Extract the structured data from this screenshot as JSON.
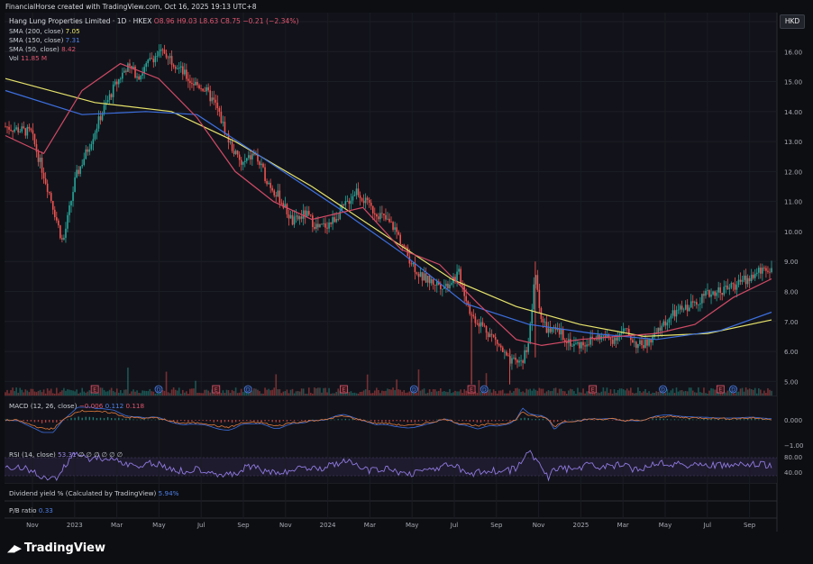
{
  "header": {
    "creator_line": "FinancialHorse created with TradingView.com, Oct 16, 2025 19:13 UTC+8",
    "symbol_line": "Hang Lung Properties Limited · 1D · HKEX",
    "open": "O8.96",
    "high": "H9.03",
    "low": "L8.63",
    "close": "C8.75",
    "change": "−0.21 (−2.34%)",
    "currency_badge": "HKD"
  },
  "indicators": {
    "sma200_label": "SMA (200, close)",
    "sma200_value": "7.05",
    "sma150_label": "SMA (150, close)",
    "sma150_value": "7.31",
    "sma50_label": "SMA (50, close)",
    "sma50_value": "8.42",
    "vol_label": "Vol",
    "vol_value": "11.85 M",
    "macd_label": "MACD (12, 26, close)",
    "macd_hist": "−0.006",
    "macd_line": "0.112",
    "macd_signal": "0.118",
    "rsi_label": "RSI (14, close)",
    "rsi_value": "53.31",
    "rsi_empty": "∅ ∅ ∅ ∅ ∅ ∅",
    "div_label": "Dividend yield % (Calculated by TradingView)",
    "div_value": "5.94%",
    "pb_label": "P/B ratio",
    "pb_value": "0.33"
  },
  "colors": {
    "up": "#26a69a",
    "down": "#ef5350",
    "sma200": "#e7e36b",
    "sma150": "#3d6fe0",
    "sma50": "#d24a66",
    "rsi": "#8f7ae0",
    "macd_line": "#3d6fe0",
    "macd_signal": "#e07a3a"
  },
  "footer": {
    "brand": "TradingView"
  },
  "chart_data": {
    "type": "candlestick",
    "title": "Hang Lung Properties Limited · 1D · HKEX",
    "price_axis": {
      "ylim": [
        4.5,
        17.3
      ],
      "ticks": [
        "17.00",
        "16.00",
        "15.00",
        "14.00",
        "13.00",
        "12.00",
        "11.00",
        "10.00",
        "9.00",
        "8.00",
        "7.00",
        "6.00",
        "5.00"
      ]
    },
    "x_ticks": [
      "Nov",
      "2023",
      "Mar",
      "May",
      "Jul",
      "Sep",
      "Nov",
      "2024",
      "Mar",
      "May",
      "Jul",
      "Sep",
      "Nov",
      "2025",
      "Mar",
      "May",
      "Jul",
      "Sep"
    ],
    "price_path": [
      [
        0,
        13.5
      ],
      [
        4,
        13.3
      ],
      [
        7,
        11.2
      ],
      [
        9,
        9.6
      ],
      [
        11,
        11.8
      ],
      [
        13,
        12.8
      ],
      [
        15,
        13.9
      ],
      [
        17,
        14.8
      ],
      [
        19,
        15.5
      ],
      [
        21,
        15.2
      ],
      [
        23,
        15.8
      ],
      [
        25,
        16.0
      ],
      [
        27,
        15.5
      ],
      [
        29,
        15.0
      ],
      [
        31,
        14.8
      ],
      [
        33,
        14.2
      ],
      [
        35,
        13.0
      ],
      [
        37,
        12.2
      ],
      [
        39,
        12.6
      ],
      [
        41,
        11.7
      ],
      [
        43,
        11.1
      ],
      [
        45,
        10.3
      ],
      [
        47,
        10.6
      ],
      [
        49,
        10.1
      ],
      [
        51,
        10.3
      ],
      [
        53,
        10.8
      ],
      [
        55,
        11.4
      ],
      [
        57,
        10.8
      ],
      [
        59,
        10.5
      ],
      [
        61,
        10.1
      ],
      [
        63,
        9.2
      ],
      [
        65,
        8.5
      ],
      [
        67,
        8.3
      ],
      [
        69,
        8.2
      ],
      [
        71,
        8.6
      ],
      [
        73,
        7.2
      ],
      [
        75,
        6.8
      ],
      [
        77,
        6.3
      ],
      [
        79,
        5.6
      ],
      [
        81,
        5.7
      ],
      [
        82,
        6.4
      ],
      [
        83,
        8.6
      ],
      [
        84,
        7.0
      ],
      [
        85,
        6.7
      ],
      [
        87,
        6.6
      ],
      [
        89,
        6.2
      ],
      [
        91,
        6.3
      ],
      [
        93,
        6.5
      ],
      [
        95,
        6.4
      ],
      [
        97,
        6.7
      ],
      [
        99,
        6.2
      ],
      [
        101,
        6.3
      ],
      [
        103,
        6.9
      ],
      [
        105,
        7.3
      ],
      [
        107,
        7.5
      ],
      [
        109,
        7.8
      ],
      [
        111,
        8.0
      ],
      [
        113,
        8.1
      ],
      [
        115,
        8.3
      ],
      [
        117,
        8.5
      ],
      [
        119,
        8.8
      ],
      [
        120,
        8.75
      ]
    ],
    "sma200_path": [
      [
        0,
        15.1
      ],
      [
        14,
        14.3
      ],
      [
        26,
        14.0
      ],
      [
        36,
        13.0
      ],
      [
        48,
        11.5
      ],
      [
        60,
        9.8
      ],
      [
        70,
        8.4
      ],
      [
        80,
        7.5
      ],
      [
        90,
        6.9
      ],
      [
        100,
        6.5
      ],
      [
        110,
        6.6
      ],
      [
        120,
        7.05
      ]
    ],
    "sma150_path": [
      [
        0,
        14.7
      ],
      [
        12,
        13.9
      ],
      [
        22,
        14.0
      ],
      [
        30,
        13.9
      ],
      [
        40,
        12.5
      ],
      [
        52,
        10.8
      ],
      [
        62,
        9.3
      ],
      [
        72,
        7.6
      ],
      [
        82,
        6.9
      ],
      [
        92,
        6.6
      ],
      [
        102,
        6.4
      ],
      [
        112,
        6.7
      ],
      [
        120,
        7.31
      ]
    ],
    "sma50_path": [
      [
        0,
        13.2
      ],
      [
        6,
        12.6
      ],
      [
        12,
        14.7
      ],
      [
        18,
        15.6
      ],
      [
        24,
        15.1
      ],
      [
        30,
        13.8
      ],
      [
        36,
        12.0
      ],
      [
        42,
        11.0
      ],
      [
        48,
        10.4
      ],
      [
        56,
        10.8
      ],
      [
        62,
        9.4
      ],
      [
        68,
        8.9
      ],
      [
        74,
        7.6
      ],
      [
        80,
        6.4
      ],
      [
        84,
        6.2
      ],
      [
        90,
        6.4
      ],
      [
        96,
        6.5
      ],
      [
        102,
        6.6
      ],
      [
        108,
        6.9
      ],
      [
        114,
        7.8
      ],
      [
        120,
        8.42
      ]
    ],
    "event_markers": [
      {
        "type": "E",
        "x": 14
      },
      {
        "type": "D",
        "x": 24
      },
      {
        "type": "E",
        "x": 33
      },
      {
        "type": "D",
        "x": 38
      },
      {
        "type": "E",
        "x": 53
      },
      {
        "type": "D",
        "x": 64
      },
      {
        "type": "E",
        "x": 73
      },
      {
        "type": "D",
        "x": 75
      },
      {
        "type": "E",
        "x": 92
      },
      {
        "type": "D",
        "x": 103
      },
      {
        "type": "E",
        "x": 112
      },
      {
        "type": "D",
        "x": 114
      }
    ],
    "macd": {
      "axis_ticks": [
        "0.000",
        "−1.00"
      ],
      "value": "0.112",
      "signal": "0.118",
      "hist": "−0.006"
    },
    "rsi": {
      "axis_ticks": [
        "80.00",
        "40.00"
      ],
      "value": "53.31",
      "band": [
        30,
        70
      ]
    }
  }
}
